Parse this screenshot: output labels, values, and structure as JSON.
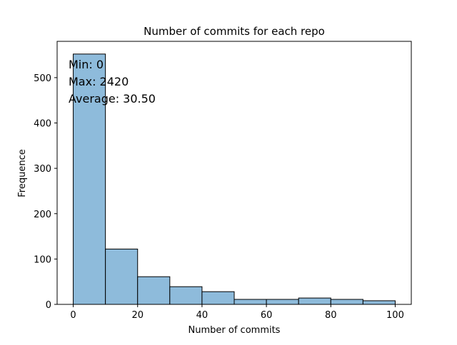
{
  "chart_data": {
    "type": "bar",
    "title": "Number of commits for each repo",
    "xlabel": "Number of commits",
    "ylabel": "Frequence",
    "xlim": [
      -5,
      105
    ],
    "ylim": [
      0,
      580
    ],
    "x_ticks": [
      0,
      20,
      40,
      60,
      80,
      100
    ],
    "y_ticks": [
      0,
      100,
      200,
      300,
      400,
      500
    ],
    "bins": [
      {
        "start": 0,
        "end": 10,
        "count": 552
      },
      {
        "start": 10,
        "end": 20,
        "count": 122
      },
      {
        "start": 20,
        "end": 30,
        "count": 61
      },
      {
        "start": 30,
        "end": 40,
        "count": 39
      },
      {
        "start": 40,
        "end": 50,
        "count": 28
      },
      {
        "start": 50,
        "end": 60,
        "count": 11
      },
      {
        "start": 60,
        "end": 70,
        "count": 11
      },
      {
        "start": 70,
        "end": 80,
        "count": 14
      },
      {
        "start": 80,
        "end": 90,
        "count": 11
      },
      {
        "start": 90,
        "end": 100,
        "count": 8
      }
    ],
    "annotations": [
      "Min: 0",
      "Max: 2420",
      "Average: 30.50"
    ],
    "bar_color": "#8ebbdb",
    "edge_color": "#000000",
    "grid": false
  }
}
